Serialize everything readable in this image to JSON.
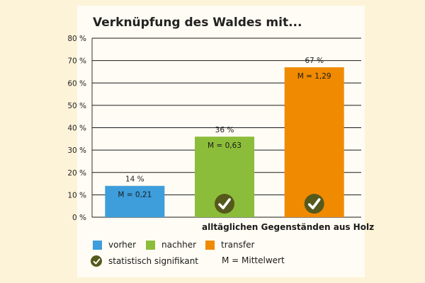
{
  "chart_data": {
    "type": "bar",
    "title": "Verknüpfung des Waldes mit...",
    "xlabel": "alltäglichen Gegenständen aus Holz",
    "ylim": [
      0,
      80
    ],
    "yticks": [
      "0 %",
      "10 %",
      "20 %",
      "30 %",
      "40 %",
      "50 %",
      "60 %",
      "70 %",
      "80 %"
    ],
    "grid": true,
    "categories": [
      "vorher",
      "nachher",
      "transfer"
    ],
    "values": [
      14,
      36,
      67
    ],
    "value_labels": [
      "14 %",
      "36 %",
      "67 %"
    ],
    "mean_labels": [
      "M = 0,21",
      "M = 0,63",
      "M = 1,29"
    ],
    "significant": [
      false,
      true,
      true
    ],
    "colors": [
      "#3d9edb",
      "#8cbd3a",
      "#f08a00"
    ]
  },
  "legend": {
    "items": [
      {
        "label": "vorher",
        "color": "#3d9edb"
      },
      {
        "label": "nachher",
        "color": "#8cbd3a"
      },
      {
        "label": "transfer",
        "color": "#f08a00"
      }
    ],
    "significance_label": "statistisch signifikant",
    "significance_icon": "check-icon",
    "mean_note": "M = Mittelwert"
  }
}
